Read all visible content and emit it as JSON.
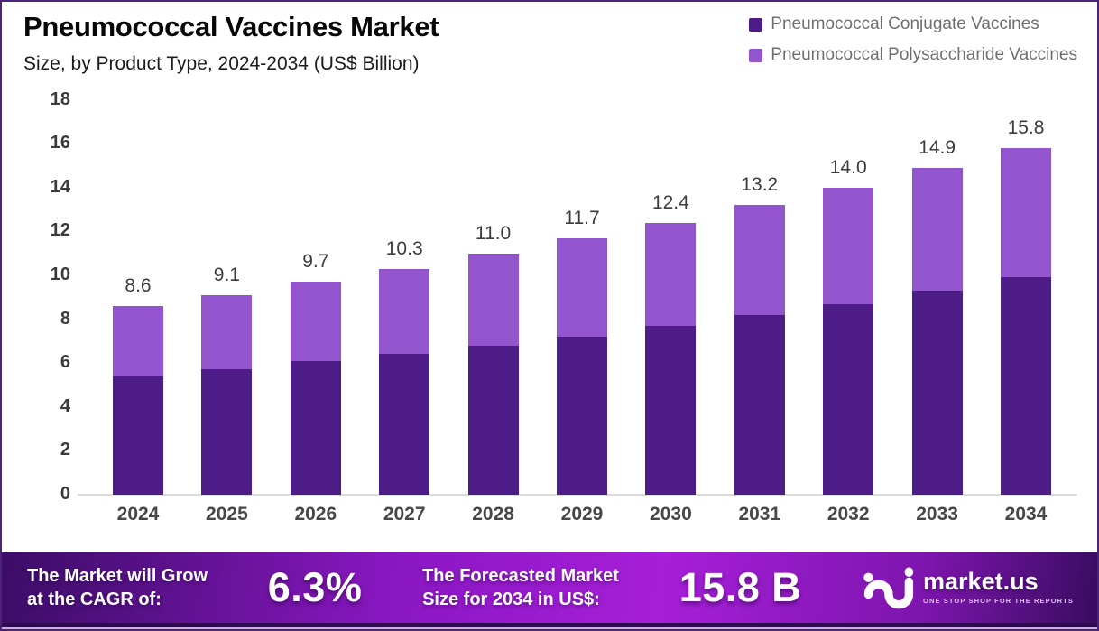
{
  "title": "Pneumococcal Vaccines Market",
  "subtitle": "Size, by Product Type, 2024-2034 (US$ Billion)",
  "legend": {
    "items": [
      {
        "label": "Pneumococcal Conjugate Vaccines",
        "color": "#4e1c87"
      },
      {
        "label": "Pneumococcal Polysaccharide Vaccines",
        "color": "#9355ce"
      }
    ]
  },
  "chart_data": {
    "type": "bar",
    "stacked": true,
    "title": "Pneumococcal Vaccines Market Size, by Product Type, 2024-2034 (US$ Billion)",
    "categories": [
      "2024",
      "2025",
      "2026",
      "2027",
      "2028",
      "2029",
      "2030",
      "2031",
      "2032",
      "2033",
      "2034"
    ],
    "series": [
      {
        "name": "Pneumococcal Conjugate Vaccines",
        "color": "#4e1c87",
        "values": [
          5.4,
          5.7,
          6.1,
          6.4,
          6.8,
          7.2,
          7.7,
          8.2,
          8.7,
          9.3,
          9.9
        ]
      },
      {
        "name": "Pneumococcal Polysaccharide Vaccines",
        "color": "#9355ce",
        "values": [
          3.2,
          3.4,
          3.6,
          3.9,
          4.2,
          4.5,
          4.7,
          5.0,
          5.3,
          5.6,
          5.9
        ]
      }
    ],
    "totals": [
      8.6,
      9.1,
      9.7,
      10.3,
      11.0,
      11.7,
      12.4,
      13.2,
      14.0,
      14.9,
      15.8
    ],
    "total_labels": [
      "8.6",
      "9.1",
      "9.7",
      "10.3",
      "11.0",
      "11.7",
      "12.4",
      "13.2",
      "14.0",
      "14.9",
      "15.8"
    ],
    "ylabel": "",
    "xlabel": "",
    "ylim": [
      0,
      18
    ],
    "y_ticks": [
      0,
      2,
      4,
      6,
      8,
      10,
      12,
      14,
      16,
      18
    ],
    "grid": false,
    "legend_position": "top-right"
  },
  "banner": {
    "cagr_label_line1": "The Market will Grow",
    "cagr_label_line2": "at the CAGR of:",
    "cagr_value": "6.3%",
    "forecast_label_line1": "The Forecasted Market",
    "forecast_label_line2": "Size for 2034 in US$:",
    "forecast_value": "15.8 B",
    "brand": {
      "name": "market.us",
      "tagline": "ONE STOP SHOP FOR THE REPORTS"
    }
  },
  "colors": {
    "conjugate_bar": "#4e1c87",
    "polysaccharide_bar": "#9355ce",
    "frame_border": "#4b2478",
    "baseline": "#dcdcdc",
    "banner_left": "#3b0d66",
    "banner_mid": "#a61fd9",
    "banner_right": "#380c60"
  }
}
